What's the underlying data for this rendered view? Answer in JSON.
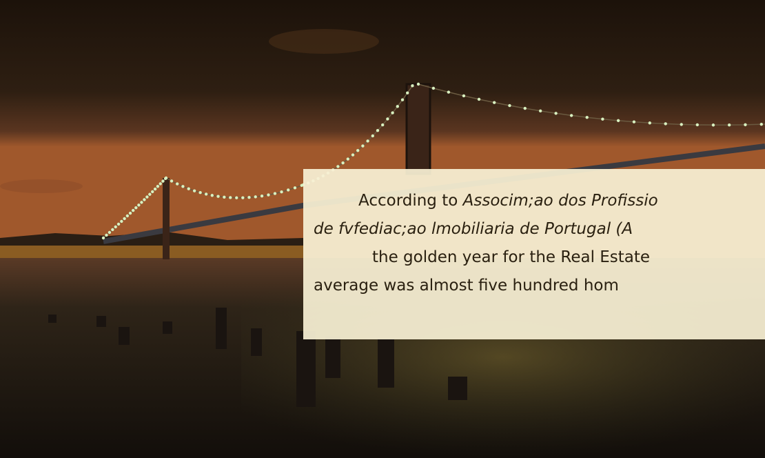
{
  "caption": {
    "lines": [
      [
        {
          "text": "According to ",
          "italic": false
        },
        {
          "text": "Associm;ao dos Profissio",
          "italic": true
        }
      ],
      [
        {
          "text": "de fvfediac;ao lmobiliaria de Portugal (A",
          "italic": true
        }
      ],
      [
        {
          "text": "the golden year for the Real Estate",
          "italic": false
        }
      ],
      [
        {
          "text": "average was almost five hundred hom",
          "italic": false
        }
      ]
    ]
  }
}
